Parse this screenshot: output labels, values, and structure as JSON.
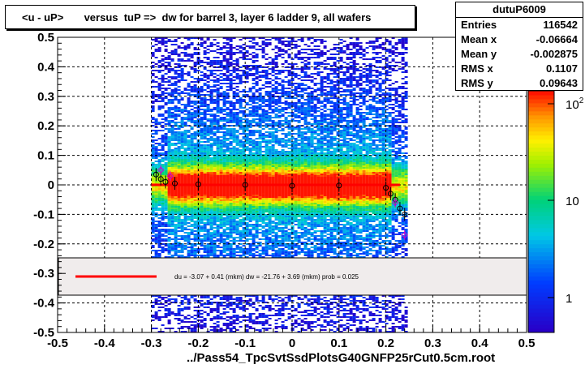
{
  "title": "<u - uP>       versus  tuP =>  dw for barrel 3, layer 6 ladder 9, all wafers",
  "stats": {
    "name": "dutuP6009",
    "rows": [
      {
        "label": "Entries",
        "value": "116542"
      },
      {
        "label": "Mean x",
        "value": "-0.06664"
      },
      {
        "label": "Mean y",
        "value": "-0.002875"
      },
      {
        "label": "RMS x",
        "value": "0.1107"
      },
      {
        "label": "RMS y",
        "value": "0.09643"
      }
    ]
  },
  "x_title": "../Pass54_TpcSvtSsdPlotsG40GNFP25rCut0.5cm.root",
  "legend_text": "du =   -3.07 +  0.41 (mkm) dw =  -21.76 +  3.69 (mkm) prob = 0.025",
  "colors": {
    "fit_line": "#ff0000",
    "profile": "#000000",
    "profile_alt": "#cc00cc",
    "grid": "#000000"
  },
  "chart_data": {
    "type": "heatmap",
    "xlim": [
      -0.5,
      0.5
    ],
    "ylim": [
      -0.5,
      0.5
    ],
    "x_ticks": [
      -0.5,
      -0.4,
      -0.3,
      -0.2,
      -0.1,
      0,
      0.1,
      0.2,
      0.3,
      0.4,
      0.5
    ],
    "x_tick_labels": [
      "-0.5",
      "-0.4",
      "-0.3",
      "-0.2",
      "-0.1",
      "0",
      "0.1",
      "0.2",
      "0.3",
      "0.4",
      "0.5"
    ],
    "y_ticks": [
      -0.5,
      -0.4,
      -0.3,
      -0.2,
      -0.1,
      0,
      0.1,
      0.2,
      0.3,
      0.4,
      0.5
    ],
    "y_tick_labels": [
      "-0.5",
      "-0.4",
      "-0.3",
      "-0.2",
      "-0.1",
      "0",
      "0.1",
      "0.2",
      "0.3",
      "0.4",
      "0.5"
    ],
    "grid": true,
    "z_scale": "log",
    "z_tick_labels": [
      "1",
      "10",
      "10²"
    ],
    "occupied_x_range": [
      -0.3,
      0.24
    ],
    "core_band_y": [
      -0.03,
      0.03
    ],
    "fit_line": {
      "x": [
        -0.3,
        0.23
      ],
      "y": [
        0,
        0
      ]
    },
    "profile_points": [
      {
        "x": -0.29,
        "y": 0.035
      },
      {
        "x": -0.28,
        "y": 0.02
      },
      {
        "x": -0.27,
        "y": 0.01
      },
      {
        "x": -0.25,
        "y": 0.005
      },
      {
        "x": -0.2,
        "y": 0.002
      },
      {
        "x": -0.1,
        "y": 0.0
      },
      {
        "x": 0.0,
        "y": -0.003
      },
      {
        "x": 0.1,
        "y": -0.002
      },
      {
        "x": 0.2,
        "y": -0.01
      },
      {
        "x": 0.21,
        "y": -0.03
      },
      {
        "x": 0.22,
        "y": -0.05
      },
      {
        "x": 0.23,
        "y": -0.08
      },
      {
        "x": 0.24,
        "y": -0.1
      }
    ],
    "profile_points_alt": [
      {
        "x": -0.28,
        "y": 0.05
      },
      {
        "x": -0.26,
        "y": 0.03
      },
      {
        "x": 0.22,
        "y": -0.06
      },
      {
        "x": 0.24,
        "y": -0.17
      }
    ]
  }
}
